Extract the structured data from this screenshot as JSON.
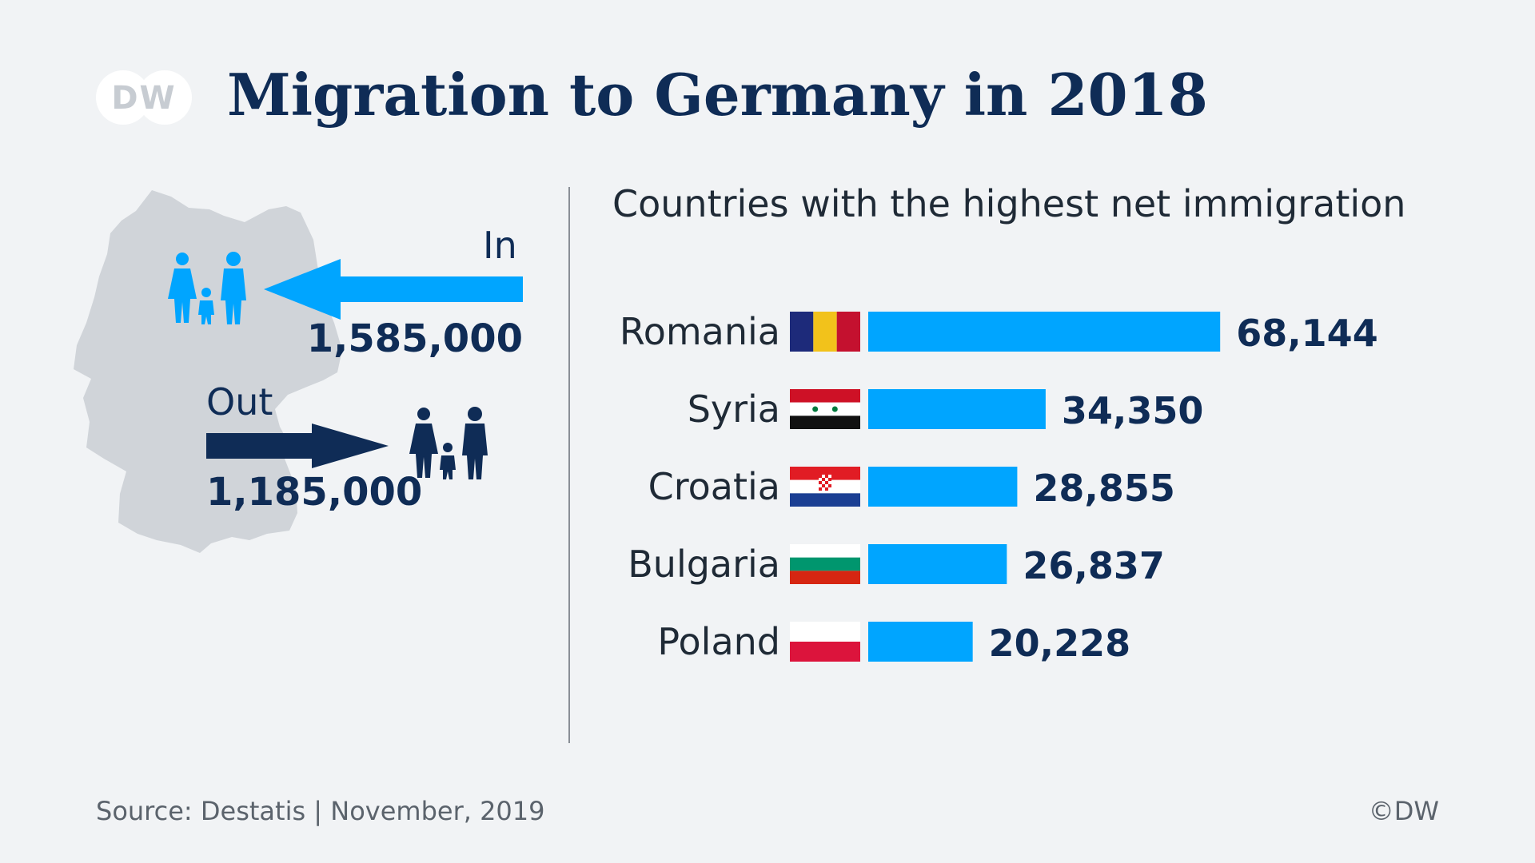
{
  "logo": {
    "text": "DW"
  },
  "title": "Migration to Germany in 2018",
  "migration": {
    "in_label": "In",
    "in_value": "1,585,000",
    "out_label": "Out",
    "out_value": "1,185,000"
  },
  "colors": {
    "navy": "#0f2c56",
    "bar_blue": "#00a5ff",
    "map_gray": "#d0d4d9",
    "background": "#f1f3f5"
  },
  "chart_data": {
    "type": "bar",
    "orientation": "horizontal",
    "title": "Countries with the highest net immigration",
    "categories": [
      "Romania",
      "Syria",
      "Croatia",
      "Bulgaria",
      "Poland"
    ],
    "values": [
      68144,
      34350,
      28855,
      26837,
      20228
    ],
    "value_labels": [
      "68,144",
      "34,350",
      "28,855",
      "26,837",
      "20,228"
    ],
    "flags": [
      "romania-flag",
      "syria-flag",
      "croatia-flag",
      "bulgaria-flag",
      "poland-flag"
    ],
    "xlim": [
      0,
      68144
    ],
    "xlabel": "",
    "ylabel": "",
    "grid": false,
    "legend": "none"
  },
  "footer": {
    "source": "Source: Destatis | November, 2019",
    "copyright": "©DW"
  }
}
